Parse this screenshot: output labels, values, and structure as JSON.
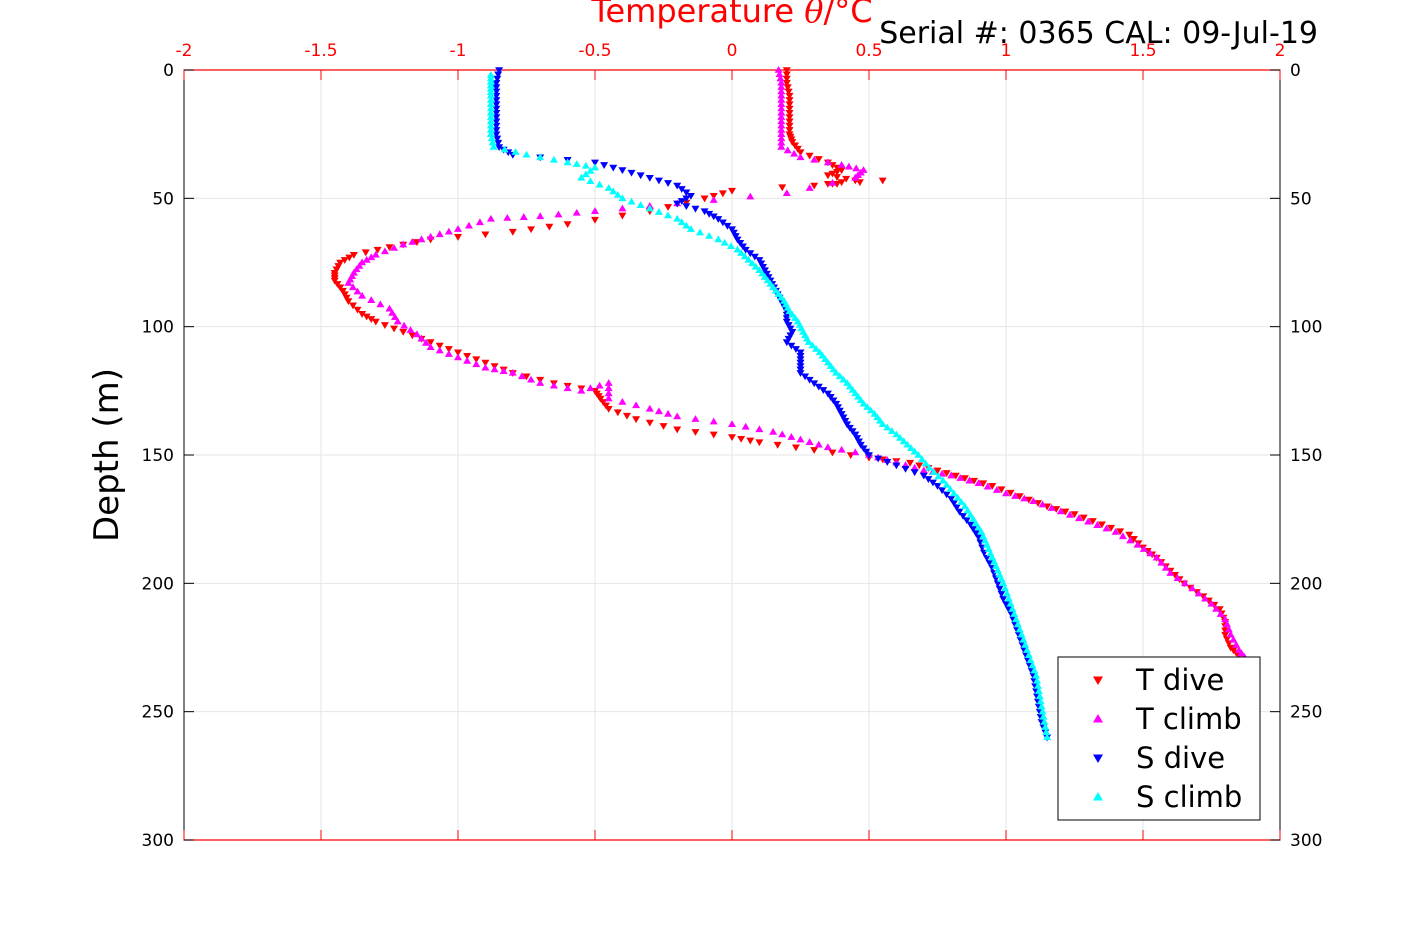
{
  "header": {
    "serial_label": "Serial #: 0365  CAL: 09-Jul-19"
  },
  "chart_data": {
    "type": "scatter",
    "x_axis": {
      "label_text": "Temperature ",
      "label_symbol": "θ",
      "label_unit": "/°C",
      "position": "top",
      "range": [
        -2,
        2
      ],
      "ticks": [
        -2,
        -1.5,
        -1,
        -0.5,
        0,
        0.5,
        1,
        1.5,
        2
      ],
      "tick_labels": [
        "-2",
        "-1.5",
        "-1",
        "-0.5",
        "0",
        "0.5",
        "1",
        "1.5",
        "2"
      ],
      "color": "#ff0000"
    },
    "y_axis": {
      "label": "Depth (m)",
      "range": [
        0,
        300
      ],
      "reversed": true,
      "ticks": [
        0,
        50,
        100,
        150,
        200,
        250,
        300
      ],
      "tick_labels": [
        "0",
        "50",
        "100",
        "150",
        "200",
        "250",
        "300"
      ]
    },
    "grid": true,
    "legend_position": "bottom-right",
    "series": [
      {
        "name": "T dive",
        "color": "#ff0000",
        "marker": "triangle-down",
        "points": [
          [
            0.2,
            0
          ],
          [
            0.2,
            5
          ],
          [
            0.21,
            10
          ],
          [
            0.21,
            15
          ],
          [
            0.21,
            20
          ],
          [
            0.21,
            25
          ],
          [
            0.22,
            28
          ],
          [
            0.25,
            32
          ],
          [
            0.35,
            36
          ],
          [
            0.4,
            39
          ],
          [
            0.35,
            41
          ],
          [
            0.45,
            43
          ],
          [
            0.3,
            45
          ],
          [
            0.55,
            43
          ],
          [
            0.0,
            47
          ],
          [
            -0.1,
            50
          ],
          [
            -0.3,
            55
          ],
          [
            -0.6,
            60
          ],
          [
            -0.8,
            63
          ],
          [
            -1.1,
            66
          ],
          [
            -1.25,
            69
          ],
          [
            -1.38,
            72
          ],
          [
            -1.43,
            75
          ],
          [
            -1.45,
            79
          ],
          [
            -1.45,
            82
          ],
          [
            -1.42,
            86
          ],
          [
            -1.4,
            90
          ],
          [
            -1.35,
            95
          ],
          [
            -1.3,
            98
          ],
          [
            -1.2,
            102
          ],
          [
            -1.1,
            106
          ],
          [
            -1.0,
            110
          ],
          [
            -0.9,
            114
          ],
          [
            -0.8,
            118
          ],
          [
            -0.65,
            122
          ],
          [
            -0.5,
            125
          ],
          [
            -0.48,
            128
          ],
          [
            -0.45,
            132
          ],
          [
            -0.35,
            136
          ],
          [
            -0.2,
            140
          ],
          [
            0.0,
            143
          ],
          [
            0.1,
            145
          ],
          [
            0.3,
            148
          ],
          [
            0.5,
            151
          ],
          [
            0.65,
            153
          ],
          [
            0.75,
            156
          ],
          [
            0.85,
            159
          ],
          [
            0.95,
            162
          ],
          [
            1.05,
            166
          ],
          [
            1.15,
            170
          ],
          [
            1.25,
            173
          ],
          [
            1.35,
            177
          ],
          [
            1.45,
            181
          ],
          [
            1.5,
            186
          ],
          [
            1.55,
            190
          ],
          [
            1.6,
            195
          ],
          [
            1.65,
            200
          ],
          [
            1.72,
            205
          ],
          [
            1.78,
            210
          ],
          [
            1.8,
            215
          ],
          [
            1.8,
            220
          ],
          [
            1.82,
            225
          ],
          [
            1.85,
            228
          ]
        ]
      },
      {
        "name": "T climb",
        "color": "#ff00ff",
        "marker": "triangle-up",
        "points": [
          [
            0.17,
            0
          ],
          [
            0.18,
            5
          ],
          [
            0.18,
            10
          ],
          [
            0.18,
            15
          ],
          [
            0.18,
            20
          ],
          [
            0.18,
            25
          ],
          [
            0.18,
            30
          ],
          [
            0.25,
            34
          ],
          [
            0.4,
            37
          ],
          [
            0.48,
            39
          ],
          [
            0.45,
            42
          ],
          [
            0.2,
            48
          ],
          [
            -0.2,
            52
          ],
          [
            -0.5,
            55
          ],
          [
            -0.7,
            57
          ],
          [
            -0.88,
            58
          ],
          [
            -1.0,
            62
          ],
          [
            -1.1,
            65
          ],
          [
            -1.2,
            68
          ],
          [
            -1.3,
            72
          ],
          [
            -1.35,
            75
          ],
          [
            -1.38,
            79
          ],
          [
            -1.4,
            83
          ],
          [
            -1.35,
            88
          ],
          [
            -1.25,
            93
          ],
          [
            -1.22,
            98
          ],
          [
            -1.15,
            103
          ],
          [
            -1.1,
            108
          ],
          [
            -1.0,
            112
          ],
          [
            -0.9,
            116
          ],
          [
            -0.8,
            118
          ],
          [
            -0.7,
            122
          ],
          [
            -0.55,
            125
          ],
          [
            -0.45,
            122
          ],
          [
            -0.45,
            128
          ],
          [
            -0.3,
            132
          ],
          [
            -0.2,
            135
          ],
          [
            0.0,
            138
          ],
          [
            0.15,
            141
          ],
          [
            0.25,
            144
          ],
          [
            0.35,
            147
          ],
          [
            0.5,
            150
          ],
          [
            0.6,
            153
          ],
          [
            0.7,
            156
          ],
          [
            0.8,
            158
          ],
          [
            0.9,
            161
          ],
          [
            1.0,
            165
          ],
          [
            1.1,
            168
          ],
          [
            1.2,
            172
          ],
          [
            1.3,
            176
          ],
          [
            1.4,
            180
          ],
          [
            1.48,
            185
          ],
          [
            1.55,
            190
          ],
          [
            1.6,
            196
          ],
          [
            1.68,
            202
          ],
          [
            1.75,
            208
          ],
          [
            1.8,
            214
          ],
          [
            1.82,
            220
          ],
          [
            1.85,
            226
          ],
          [
            1.88,
            230
          ]
        ]
      },
      {
        "name": "S dive",
        "color": "#0000ff",
        "marker": "triangle-down",
        "points": [
          [
            -0.85,
            0
          ],
          [
            -0.86,
            5
          ],
          [
            -0.86,
            10
          ],
          [
            -0.86,
            15
          ],
          [
            -0.86,
            20
          ],
          [
            -0.86,
            25
          ],
          [
            -0.85,
            30
          ],
          [
            -0.8,
            33
          ],
          [
            -0.5,
            36
          ],
          [
            -0.4,
            39
          ],
          [
            -0.3,
            42
          ],
          [
            -0.2,
            45
          ],
          [
            -0.15,
            49
          ],
          [
            -0.2,
            52
          ],
          [
            -0.1,
            55
          ],
          [
            -0.05,
            58
          ],
          [
            0.0,
            62
          ],
          [
            0.02,
            66
          ],
          [
            0.05,
            70
          ],
          [
            0.1,
            74
          ],
          [
            0.12,
            78
          ],
          [
            0.14,
            82
          ],
          [
            0.16,
            86
          ],
          [
            0.18,
            90
          ],
          [
            0.2,
            94
          ],
          [
            0.2,
            98
          ],
          [
            0.22,
            102
          ],
          [
            0.2,
            106
          ],
          [
            0.25,
            110
          ],
          [
            0.25,
            114
          ],
          [
            0.25,
            118
          ],
          [
            0.3,
            122
          ],
          [
            0.35,
            126
          ],
          [
            0.38,
            130
          ],
          [
            0.4,
            134
          ],
          [
            0.42,
            138
          ],
          [
            0.45,
            142
          ],
          [
            0.47,
            146
          ],
          [
            0.5,
            150
          ],
          [
            0.6,
            154
          ],
          [
            0.7,
            158
          ],
          [
            0.75,
            162
          ],
          [
            0.8,
            167
          ],
          [
            0.83,
            172
          ],
          [
            0.87,
            177
          ],
          [
            0.9,
            182
          ],
          [
            0.92,
            188
          ],
          [
            0.95,
            194
          ],
          [
            0.97,
            200
          ],
          [
            0.99,
            206
          ],
          [
            1.02,
            212
          ],
          [
            1.04,
            218
          ],
          [
            1.06,
            224
          ],
          [
            1.08,
            230
          ],
          [
            1.1,
            236
          ],
          [
            1.11,
            242
          ],
          [
            1.12,
            248
          ],
          [
            1.13,
            254
          ],
          [
            1.15,
            260
          ]
        ]
      },
      {
        "name": "S climb",
        "color": "#00ffff",
        "marker": "triangle-up",
        "points": [
          [
            -0.88,
            2
          ],
          [
            -0.88,
            6
          ],
          [
            -0.88,
            10
          ],
          [
            -0.88,
            15
          ],
          [
            -0.88,
            20
          ],
          [
            -0.88,
            25
          ],
          [
            -0.87,
            30
          ],
          [
            -0.75,
            33
          ],
          [
            -0.6,
            36
          ],
          [
            -0.5,
            38
          ],
          [
            -0.55,
            42
          ],
          [
            -0.45,
            46
          ],
          [
            -0.4,
            50
          ],
          [
            -0.3,
            54
          ],
          [
            -0.2,
            58
          ],
          [
            -0.15,
            62
          ],
          [
            -0.05,
            66
          ],
          [
            0.02,
            70
          ],
          [
            0.06,
            74
          ],
          [
            0.1,
            78
          ],
          [
            0.13,
            82
          ],
          [
            0.16,
            86
          ],
          [
            0.19,
            90
          ],
          [
            0.21,
            94
          ],
          [
            0.24,
            98
          ],
          [
            0.26,
            102
          ],
          [
            0.28,
            106
          ],
          [
            0.32,
            110
          ],
          [
            0.35,
            114
          ],
          [
            0.38,
            118
          ],
          [
            0.42,
            122
          ],
          [
            0.45,
            126
          ],
          [
            0.48,
            130
          ],
          [
            0.52,
            134
          ],
          [
            0.55,
            138
          ],
          [
            0.6,
            142
          ],
          [
            0.64,
            146
          ],
          [
            0.68,
            150
          ],
          [
            0.72,
            155
          ],
          [
            0.77,
            160
          ],
          [
            0.81,
            165
          ],
          [
            0.85,
            170
          ],
          [
            0.88,
            175
          ],
          [
            0.91,
            180
          ],
          [
            0.93,
            185
          ],
          [
            0.95,
            190
          ],
          [
            0.97,
            195
          ],
          [
            0.99,
            200
          ],
          [
            1.01,
            206
          ],
          [
            1.03,
            212
          ],
          [
            1.05,
            218
          ],
          [
            1.07,
            224
          ],
          [
            1.09,
            230
          ],
          [
            1.11,
            236
          ],
          [
            1.12,
            242
          ],
          [
            1.13,
            248
          ],
          [
            1.14,
            254
          ],
          [
            1.15,
            260
          ]
        ]
      }
    ]
  }
}
